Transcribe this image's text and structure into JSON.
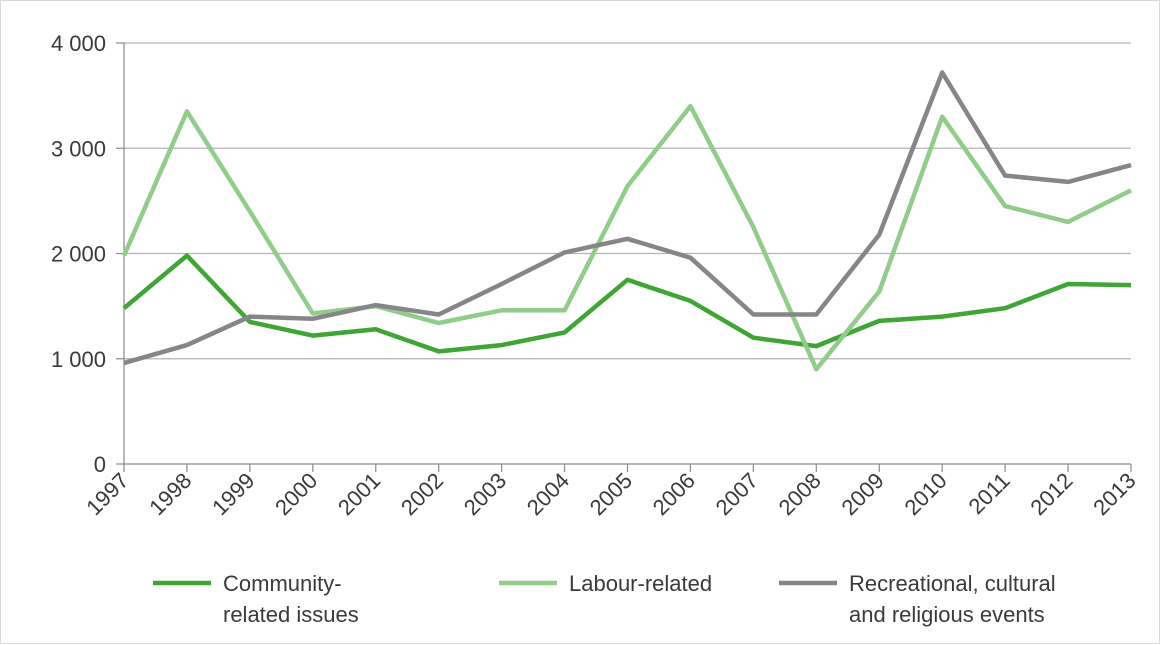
{
  "chart_data": {
    "type": "line",
    "title": "",
    "xlabel": "",
    "ylabel": "",
    "x": [
      "1997",
      "1998",
      "1999",
      "2000",
      "2001",
      "2002",
      "2003",
      "2004",
      "2005",
      "2006",
      "2007",
      "2008",
      "2009",
      "2010",
      "2011",
      "2012",
      "2013"
    ],
    "ylim": [
      0,
      4000
    ],
    "yticks": [
      0,
      1000,
      2000,
      3000,
      4000
    ],
    "ytick_labels": [
      "0",
      "1 000",
      "2 000",
      "3 000",
      "4 000"
    ],
    "grid": "horizontal",
    "legend_position": "bottom",
    "series": [
      {
        "name": "Community-related issues",
        "legend_lines": [
          "Community-",
          "related issues"
        ],
        "color": "#3fa535",
        "values": [
          1480,
          1980,
          1350,
          1220,
          1280,
          1070,
          1130,
          1250,
          1750,
          1550,
          1200,
          1120,
          1360,
          1400,
          1480,
          1710,
          1700
        ]
      },
      {
        "name": "Labour-related",
        "legend_lines": [
          "Labour-related"
        ],
        "color": "#92cc8b",
        "values": [
          1980,
          3350,
          2400,
          1430,
          1500,
          1340,
          1460,
          1460,
          2640,
          3400,
          2250,
          900,
          1640,
          3300,
          2450,
          2300,
          2600
        ]
      },
      {
        "name": "Recreational, cultural and religious events",
        "legend_lines": [
          "Recreational, cultural",
          "and religious events"
        ],
        "color": "#85858a",
        "values": [
          960,
          1130,
          1400,
          1380,
          1510,
          1420,
          1710,
          2010,
          2140,
          1960,
          1420,
          1420,
          2180,
          3720,
          2740,
          2680,
          2840
        ]
      }
    ]
  }
}
